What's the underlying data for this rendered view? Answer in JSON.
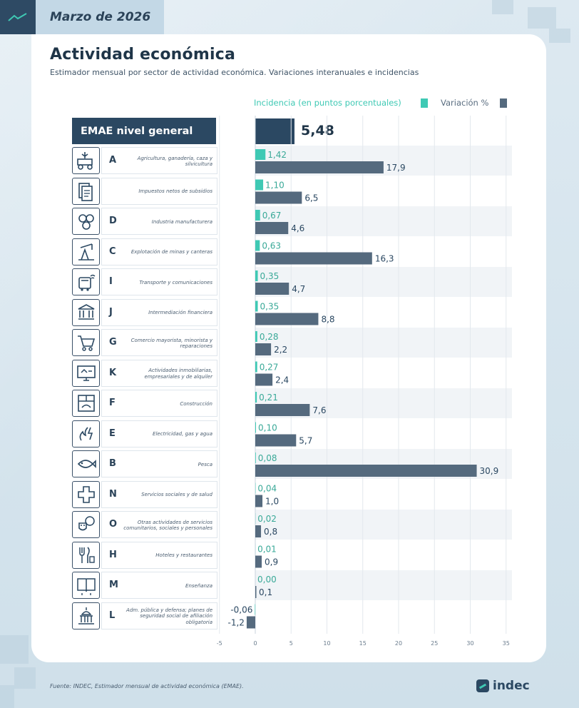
{
  "header": {
    "date": "Marzo de 2026"
  },
  "title": "Actividad económica",
  "subtitle": "Estimador mensual por sector de actividad económica. Variaciones interanuales e incidencias",
  "legend": {
    "incidencia": "Incidencia (en puntos porcentuales)",
    "variacion": "Variación %"
  },
  "emae": {
    "label": "EMAE nivel general",
    "value_label": "5,48"
  },
  "colors": {
    "incidencia": "#3fc9b4",
    "variacion": "#556a7e",
    "total": "#2b4862",
    "navy": "#1f3548"
  },
  "chart_data": {
    "type": "bar",
    "orientation": "horizontal",
    "total": {
      "name": "EMAE nivel general",
      "value": 5.48
    },
    "categories": [
      {
        "code": "A",
        "name": "Agricultura, ganadería, caza y silvicultura",
        "icon": "tractor-icon"
      },
      {
        "code": "",
        "name": "Impuestos netos de subsidios",
        "icon": "documents-icon"
      },
      {
        "code": "D",
        "name": "Industria manufacturera",
        "icon": "gears-icon"
      },
      {
        "code": "C",
        "name": "Explotación de minas y canteras",
        "icon": "oil-pump-icon"
      },
      {
        "code": "I",
        "name": "Transporte y comunicaciones",
        "icon": "bus-wifi-icon"
      },
      {
        "code": "J",
        "name": "Intermediación financiera",
        "icon": "bank-icon"
      },
      {
        "code": "G",
        "name": "Comercio mayorista, minorista y reparaciones",
        "icon": "shopping-cart-icon"
      },
      {
        "code": "K",
        "name": "Actividades inmobiliarias, empresariales y de alquiler",
        "icon": "real-estate-icon"
      },
      {
        "code": "F",
        "name": "Construcción",
        "icon": "construction-icon"
      },
      {
        "code": "E",
        "name": "Electricidad, gas y agua",
        "icon": "utilities-icon"
      },
      {
        "code": "B",
        "name": "Pesca",
        "icon": "fish-icon"
      },
      {
        "code": "N",
        "name": "Servicios sociales y de salud",
        "icon": "health-cross-icon"
      },
      {
        "code": "O",
        "name": "Otras actividades de servicios comunitarios, sociales y personales",
        "icon": "theater-icon"
      },
      {
        "code": "H",
        "name": "Hoteles y restaurantes",
        "icon": "cutlery-icon"
      },
      {
        "code": "M",
        "name": "Enseñanza",
        "icon": "book-icon"
      },
      {
        "code": "L",
        "name": "Adm. pública y defensa; planes de seguridad social de afiliación obligatoria",
        "icon": "capitol-icon"
      }
    ],
    "series": [
      {
        "name": "Incidencia (en puntos porcentuales)",
        "values": [
          1.42,
          1.1,
          0.67,
          0.63,
          0.35,
          0.35,
          0.28,
          0.27,
          0.21,
          0.1,
          0.08,
          0.04,
          0.02,
          0.01,
          0.0,
          -0.06
        ],
        "labels": [
          "1,42",
          "1,10",
          "0,67",
          "0,63",
          "0,35",
          "0,35",
          "0,28",
          "0,27",
          "0,21",
          "0,10",
          "0,08",
          "0,04",
          "0,02",
          "0,01",
          "0,00",
          "-0,06"
        ]
      },
      {
        "name": "Variación %",
        "values": [
          17.9,
          6.5,
          4.6,
          16.3,
          4.7,
          8.8,
          2.2,
          2.4,
          7.6,
          5.7,
          30.9,
          1.0,
          0.8,
          0.9,
          0.1,
          -1.2
        ],
        "labels": [
          "17,9",
          "6,5",
          "4,6",
          "16,3",
          "4,7",
          "8,8",
          "2,2",
          "2,4",
          "7,6",
          "5,7",
          "30,9",
          "1,0",
          "0,8",
          "0,9",
          "0,1",
          "-1,2"
        ]
      }
    ],
    "xlim": [
      -5,
      35
    ],
    "xticks": [
      -5,
      0,
      5,
      10,
      15,
      20,
      25,
      30,
      35
    ],
    "grid": true,
    "legend_position": "top-right"
  },
  "footer": {
    "source": "Fuente: INDEC, Estimador mensual de actividad económica (EMAE).",
    "brand": "indec"
  }
}
